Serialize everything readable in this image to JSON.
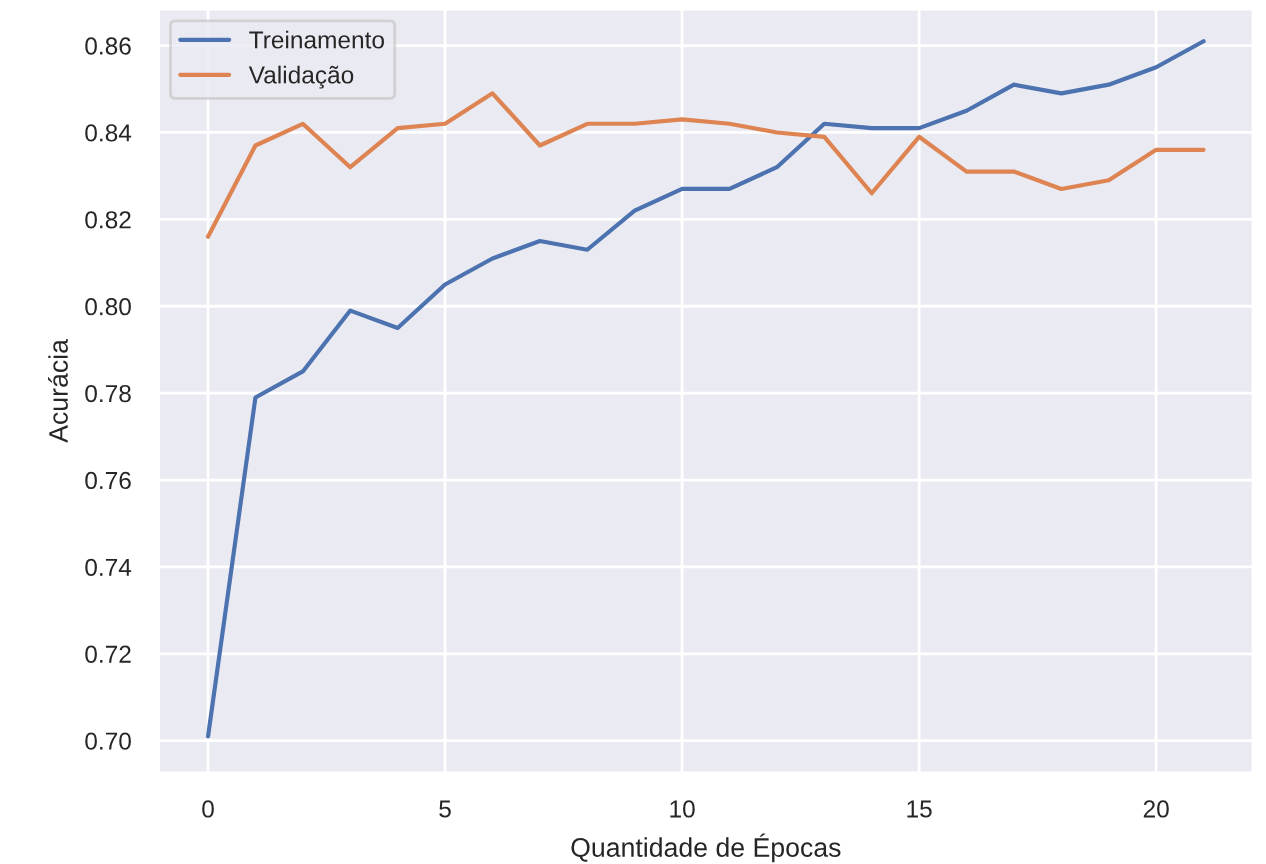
{
  "chart_data": {
    "type": "line",
    "xlabel": "Quantidade de Épocas",
    "ylabel": "Acurácia",
    "x": [
      0,
      1,
      2,
      3,
      4,
      5,
      6,
      7,
      8,
      9,
      10,
      11,
      12,
      13,
      14,
      15,
      16,
      17,
      18,
      19,
      20,
      21
    ],
    "series": [
      {
        "name": "Treinamento",
        "color": "#4c72b0",
        "values": [
          0.701,
          0.779,
          0.785,
          0.799,
          0.795,
          0.805,
          0.811,
          0.815,
          0.813,
          0.822,
          0.827,
          0.827,
          0.832,
          0.842,
          0.841,
          0.841,
          0.845,
          0.851,
          0.849,
          0.851,
          0.855,
          0.861
        ]
      },
      {
        "name": "Validação",
        "color": "#dd8452",
        "values": [
          0.816,
          0.837,
          0.842,
          0.832,
          0.841,
          0.842,
          0.849,
          0.837,
          0.842,
          0.842,
          0.843,
          0.842,
          0.84,
          0.839,
          0.826,
          0.839,
          0.831,
          0.831,
          0.827,
          0.829,
          0.836,
          0.836
        ]
      }
    ],
    "xlim": [
      -1.05,
      22.05
    ],
    "ylim": [
      0.6925,
      0.8685
    ],
    "xticks": [
      0,
      5,
      10,
      15,
      20
    ],
    "yticks": [
      {
        "value": 0.7,
        "label": "0.70"
      },
      {
        "value": 0.72,
        "label": "0.72"
      },
      {
        "value": 0.74,
        "label": "0.74"
      },
      {
        "value": 0.76,
        "label": "0.76"
      },
      {
        "value": 0.78,
        "label": "0.78"
      },
      {
        "value": 0.8,
        "label": "0.80"
      },
      {
        "value": 0.82,
        "label": "0.82"
      },
      {
        "value": 0.84,
        "label": "0.84"
      },
      {
        "value": 0.86,
        "label": "0.86"
      }
    ],
    "grid": true,
    "legend": "upper left",
    "marker": "none",
    "line_style": "solid"
  }
}
